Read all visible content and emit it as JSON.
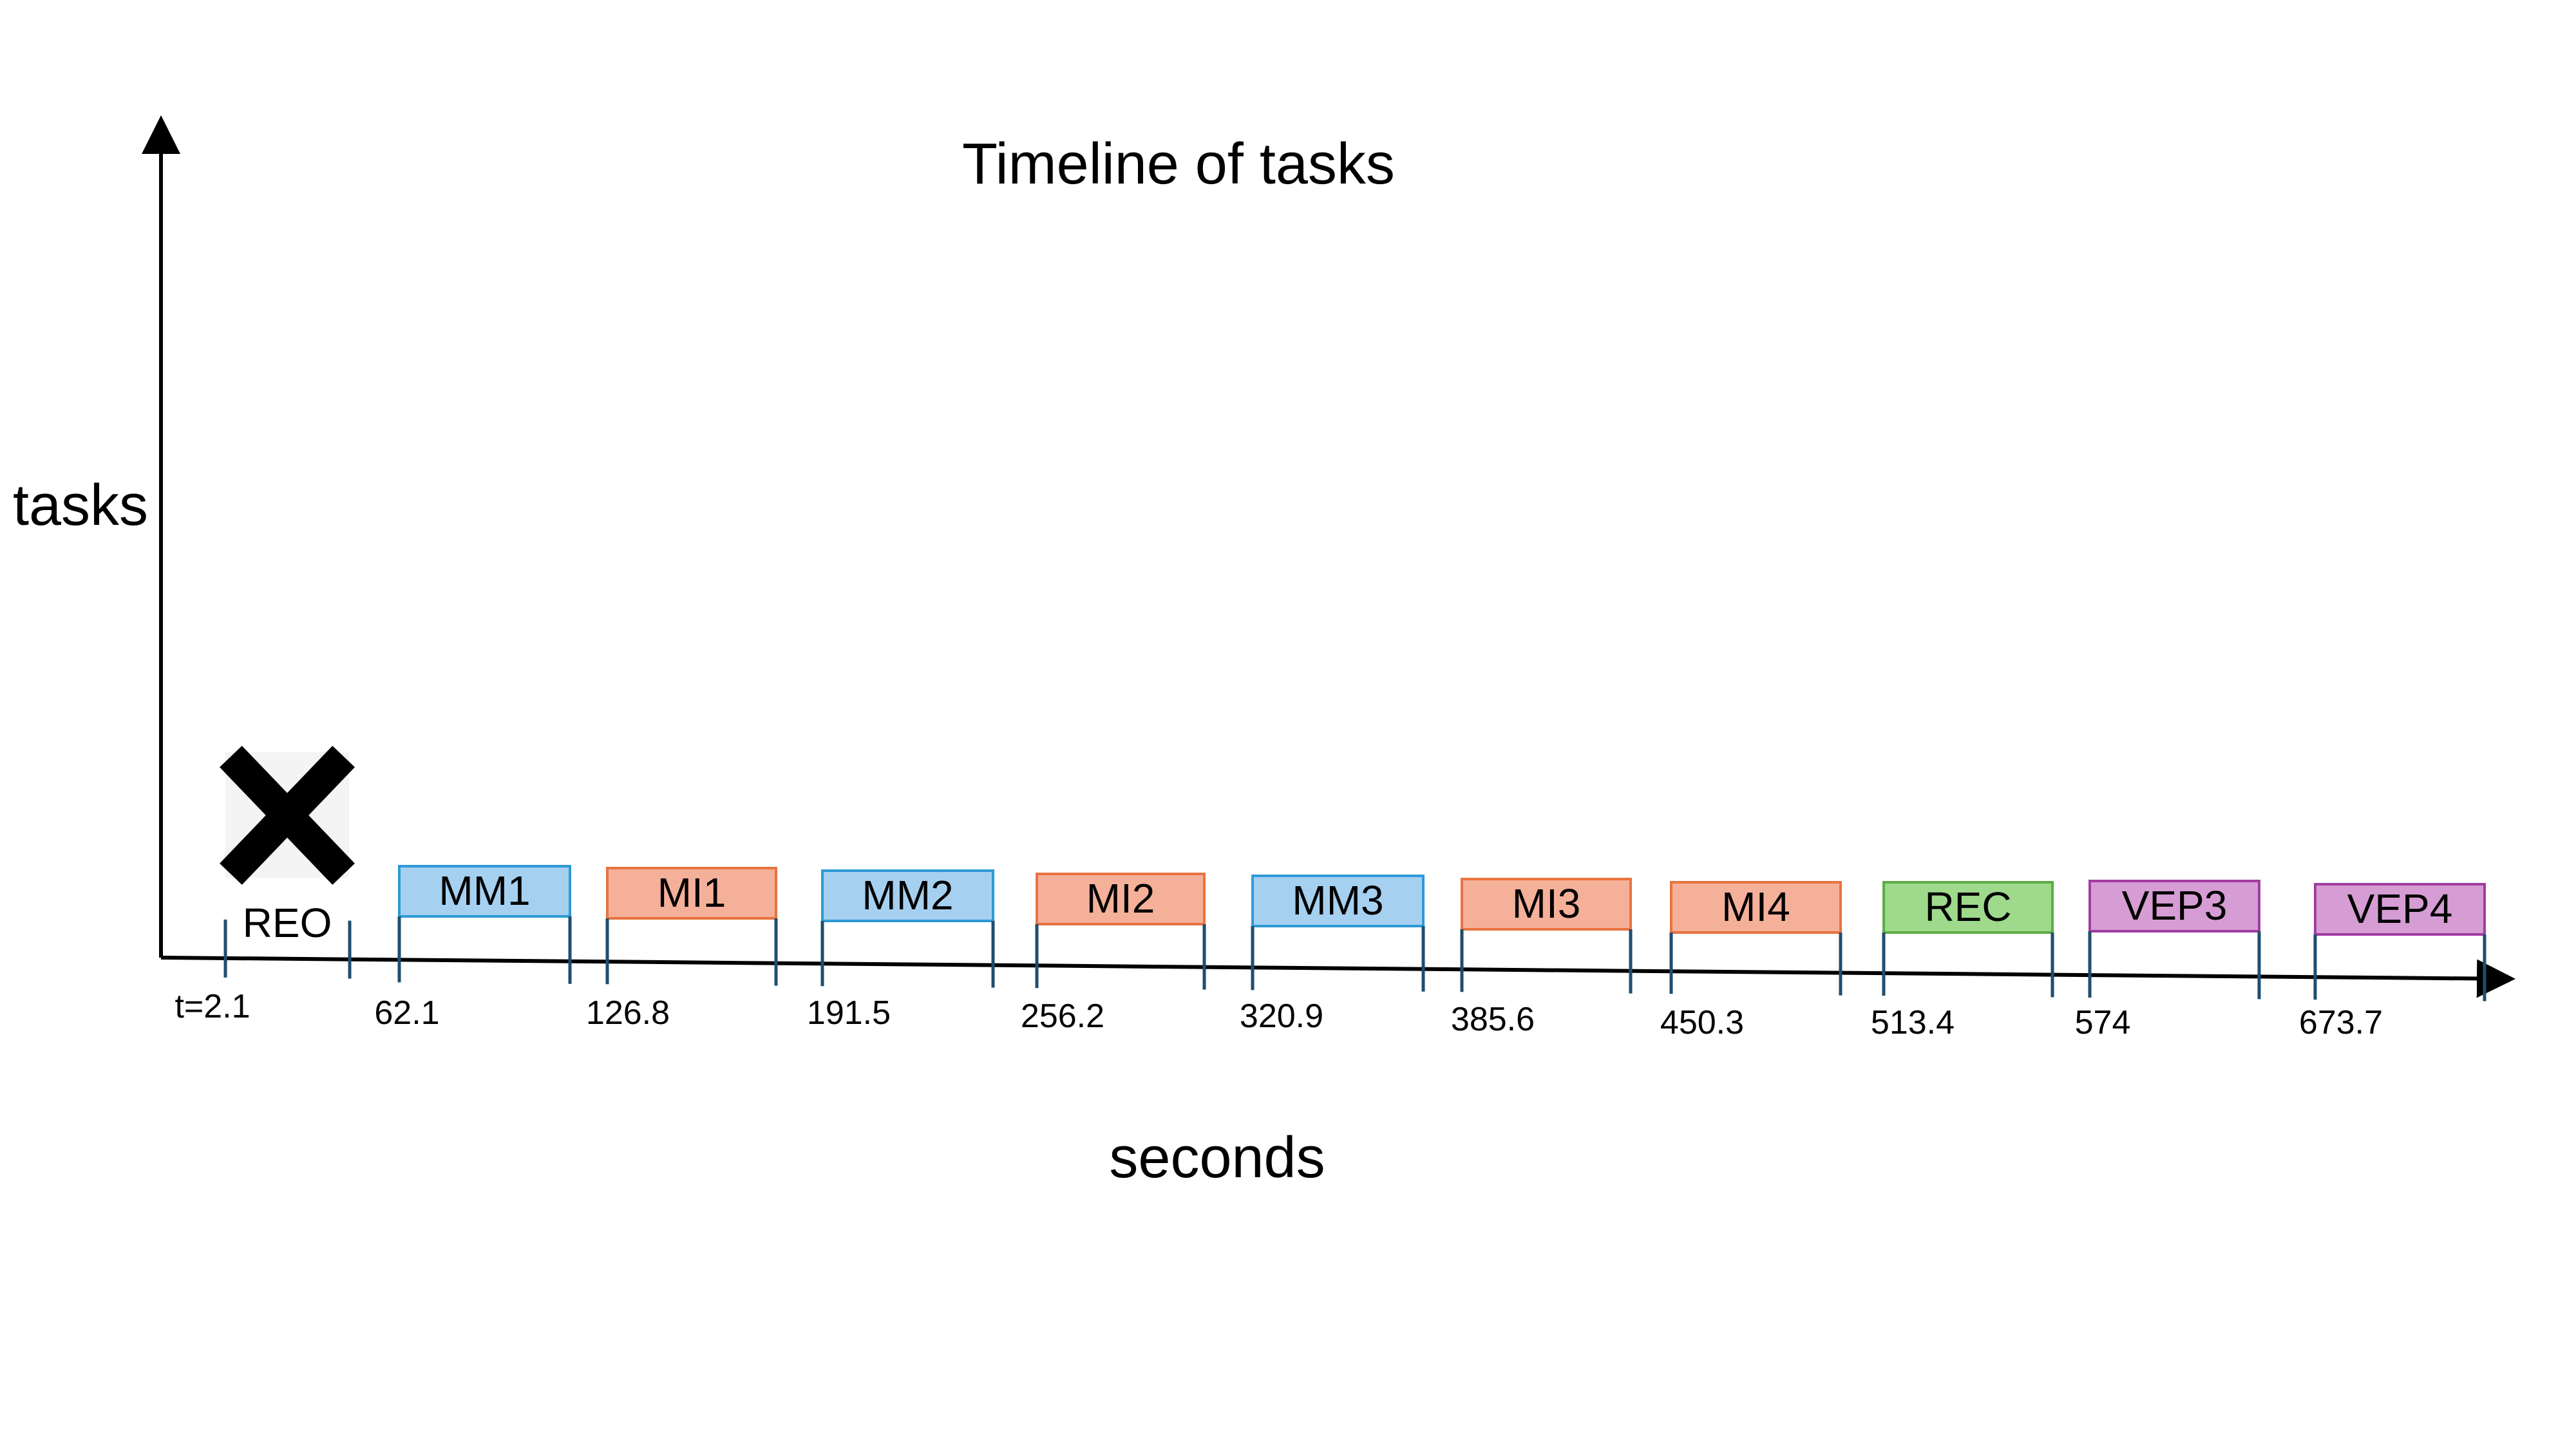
{
  "title": "Timeline of tasks",
  "y_axis_label": "tasks",
  "x_axis_label": "seconds",
  "excluded_marker": {
    "label": "REO",
    "icon": "x-icon",
    "color": "#000000"
  },
  "tick_labels": [
    "t=2.1",
    "62.1",
    "126.8",
    "191.5",
    "256.2",
    "320.9",
    "385.6",
    "450.3",
    "513.4",
    "574",
    "673.7"
  ],
  "tasks": [
    {
      "label": "MM1",
      "color": "#a6d0f0",
      "border": "#2d9ad6"
    },
    {
      "label": "MI1",
      "color": "#f5b09a",
      "border": "#e8733f"
    },
    {
      "label": "MM2",
      "color": "#a6d0f0",
      "border": "#2d9ad6"
    },
    {
      "label": "MI2",
      "color": "#f5b09a",
      "border": "#e8733f"
    },
    {
      "label": "MM3",
      "color": "#a6d0f0",
      "border": "#2d9ad6"
    },
    {
      "label": "MI3",
      "color": "#f5b09a",
      "border": "#e8733f"
    },
    {
      "label": "MI4",
      "color": "#f5b09a",
      "border": "#e8733f"
    },
    {
      "label": "REC",
      "color": "#9ed98c",
      "border": "#5bad45"
    },
    {
      "label": "VEP3",
      "color": "#d69dd4",
      "border": "#a03ca0"
    },
    {
      "label": "VEP4",
      "color": "#d69dd4",
      "border": "#a03ca0"
    }
  ],
  "colors": {
    "axis": "#000000",
    "tick": "#1f4e6e"
  }
}
